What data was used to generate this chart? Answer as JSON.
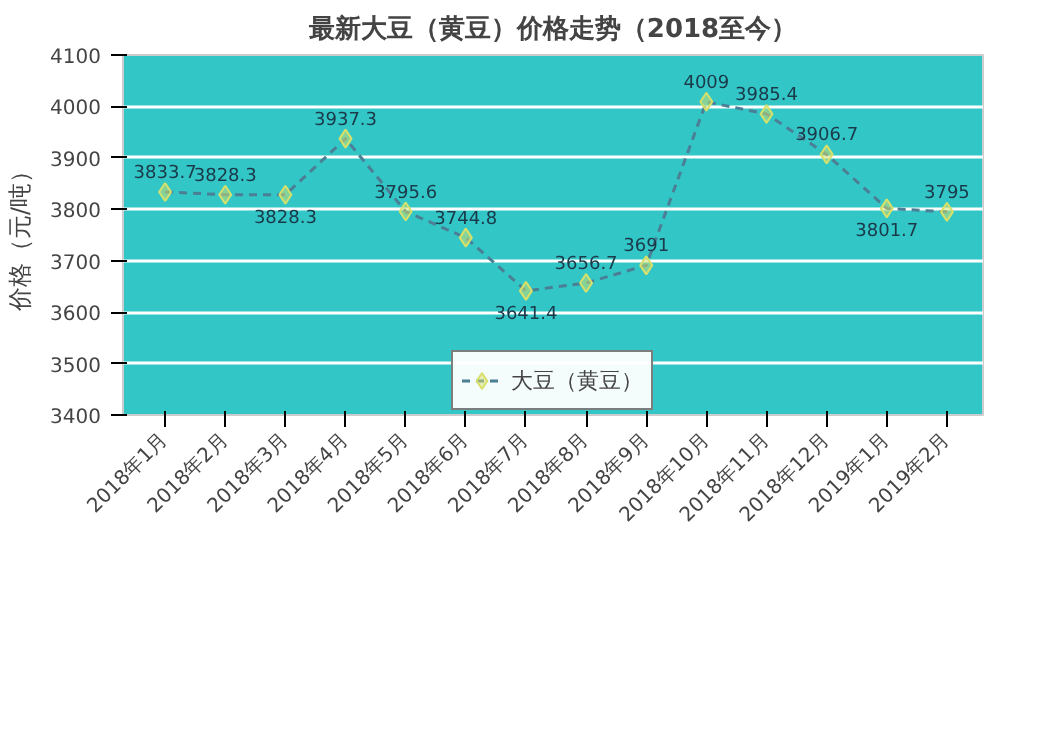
{
  "chart_data": {
    "type": "line",
    "title": "最新大豆（黄豆）价格走势（2018至今）",
    "ylabel": "价格（元/吨）",
    "categories": [
      "2018年1月",
      "2018年2月",
      "2018年3月",
      "2018年4月",
      "2018年5月",
      "2018年6月",
      "2018年7月",
      "2018年8月",
      "2018年9月",
      "2018年10月",
      "2018年11月",
      "2018年12月",
      "2019年1月",
      "2019年2月"
    ],
    "series": [
      {
        "name": "大豆（黄豆）",
        "color": "#d8e06a",
        "values": [
          3833.7,
          3828.3,
          3828.3,
          3937.3,
          3795.6,
          3744.8,
          3641.4,
          3656.7,
          3691,
          4009,
          3985.4,
          3906.7,
          3801.7,
          3795
        ]
      }
    ],
    "ylim": [
      3400,
      4100
    ],
    "yticks": [
      3400,
      3500,
      3600,
      3700,
      3800,
      3900,
      4000,
      4100
    ],
    "data_labels": true,
    "grid": "y",
    "legend": "bottom",
    "marker": "diamond",
    "line_style": "dashed"
  }
}
